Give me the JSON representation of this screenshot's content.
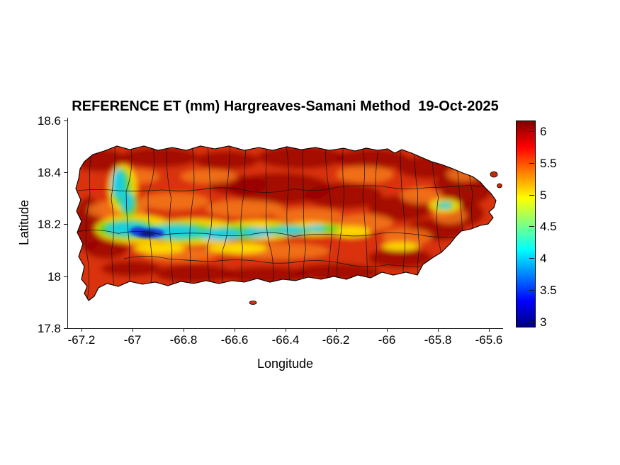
{
  "title": "REFERENCE ET (mm) Hargreaves-Samani Method  19-Oct-2025",
  "axes": {
    "xlabel": "Longitude",
    "ylabel": "Latitude",
    "x_ticks": [
      "-67.2",
      "-67",
      "-66.8",
      "-66.6",
      "-66.4",
      "-66.2",
      "-66",
      "-65.8",
      "-65.6"
    ],
    "y_ticks": [
      "18.6",
      "18.4",
      "18.2",
      "18",
      "17.8"
    ]
  },
  "colorbar": {
    "ticks": [
      "6",
      "5.5",
      "5",
      "4.5",
      "4",
      "3.5",
      "3"
    ],
    "colormap": "jet",
    "range": [
      2.9,
      6.2
    ]
  },
  "chart_data": {
    "type": "heatmap",
    "title": "REFERENCE ET (mm) Hargreaves-Samani Method  19-Oct-2025",
    "variable": "Reference evapotranspiration (ET)",
    "units": "mm",
    "method": "Hargreaves-Samani",
    "date": "19-Oct-2025",
    "region": "Puerto Rico with municipality boundaries overlaid",
    "xlabel": "Longitude",
    "ylabel": "Latitude",
    "xlim": [
      -67.3,
      -65.55
    ],
    "ylim": [
      17.8,
      18.6
    ],
    "x_ticks": [
      -67.2,
      -67,
      -66.8,
      -66.6,
      -66.4,
      -66.2,
      -66,
      -65.8,
      -65.6
    ],
    "y_ticks": [
      18.6,
      18.4,
      18.2,
      18,
      17.8
    ],
    "colorbar_ticks": [
      6,
      5.5,
      5,
      4.5,
      4,
      3.5,
      3
    ],
    "colorbar_range": [
      2.9,
      6.2
    ],
    "colormap": "jet",
    "legend_position": "right colorbar",
    "grid": false,
    "features": [
      {
        "area": "most of the island (north, south, east and coastal areas)",
        "et_mm": "5.5-6.2 (red to dark red)"
      },
      {
        "area": "west-central interior valley band, approx lon -67.1 to -66.15 at lat 18.1-18.25",
        "et_mm": "4.0-5.0 (yellow/green)"
      },
      {
        "area": "cool minimum core near lon -66.94, lat 18.16",
        "et_mm": "3.0-3.8 (blue / dark blue)"
      },
      {
        "area": "northwest diagonal band near lon -67.1, lat 18.3-18.4",
        "et_mm": "4.0-4.8 (cyan/green)"
      },
      {
        "area": "small eastern interior spot near lon -65.78, lat 18.27",
        "et_mm": "4.3-5.0 (cyan/green/yellow)"
      }
    ]
  }
}
